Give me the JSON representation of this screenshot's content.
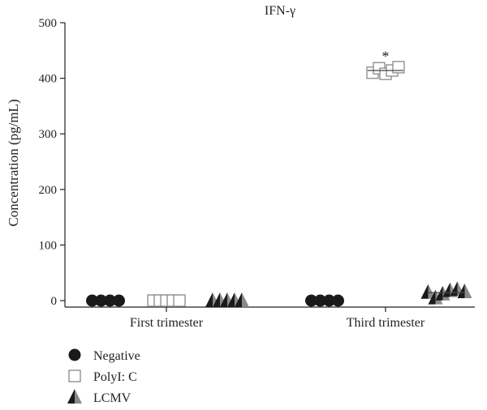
{
  "chart_data": {
    "type": "scatter",
    "title": "IFN-γ",
    "ylabel": "Concentration (pg/mL)",
    "xlabel": "",
    "ylim": [
      0,
      500
    ],
    "yticks": [
      "0",
      "100",
      "200",
      "300",
      "400",
      "500"
    ],
    "categories": [
      "First trimester",
      "Third trimester"
    ],
    "series": [
      {
        "name": "Negative",
        "marker": "filled-circle",
        "color": "#1a1a1a",
        "values": [
          [
            0,
            0,
            0,
            0
          ],
          [
            0,
            0,
            0,
            0
          ]
        ]
      },
      {
        "name": "PolyI: C",
        "marker": "open-square",
        "color": "#888888",
        "values": [
          [
            0,
            0,
            0,
            0,
            0
          ],
          [
            410,
            418,
            408,
            414,
            420
          ]
        ]
      },
      {
        "name": "LCMV",
        "marker": "half-triangle",
        "color": "#1a1a1a",
        "values": [
          [
            0,
            0,
            0,
            0,
            0
          ],
          [
            15,
            5,
            12,
            18,
            20,
            16
          ]
        ]
      }
    ],
    "annotations": [
      {
        "text": "*",
        "category": "Third trimester",
        "series": "PolyI: C",
        "y": 448
      }
    ],
    "legend": {
      "placement": "bottom-left"
    }
  }
}
